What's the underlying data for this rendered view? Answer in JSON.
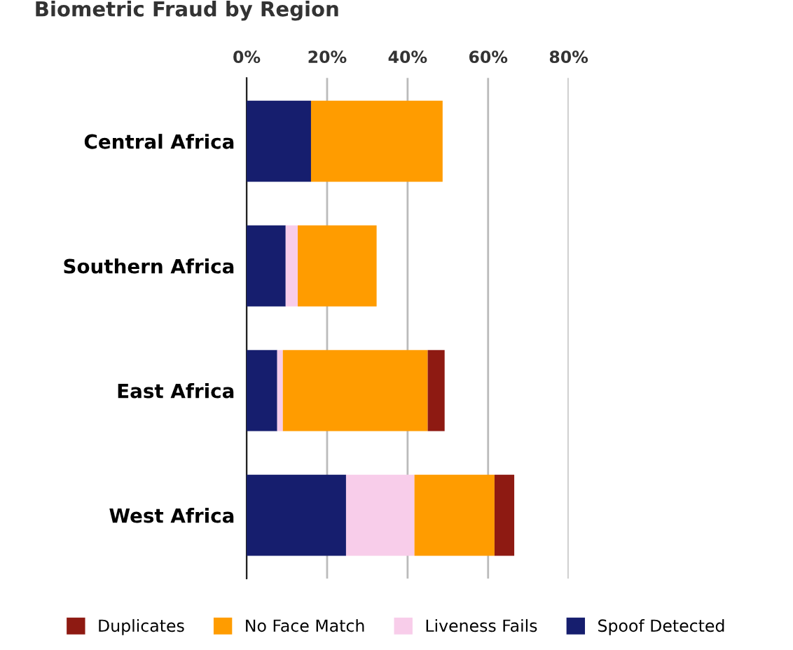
{
  "chart_data": {
    "type": "bar",
    "orientation": "horizontal",
    "stacked": true,
    "title": "Biometric Fraud by Region",
    "categories": [
      "Central Africa",
      "Southern Africa",
      "East Africa",
      "West Africa"
    ],
    "series": [
      {
        "name": "Spoof Detected",
        "color": "#161e6e",
        "values": [
          16,
          9.7,
          7.6,
          24.7
        ]
      },
      {
        "name": "Liveness Fails",
        "color": "#f8cdea",
        "values": [
          null,
          3,
          1.4,
          17
        ]
      },
      {
        "name": "No Face Match",
        "color": "#ff9c00",
        "values": [
          32.7,
          19.6,
          36,
          19.9
        ]
      },
      {
        "name": "Duplicates",
        "color": "#8e1a12",
        "values": [
          null,
          null,
          4.2,
          4.9
        ]
      }
    ],
    "xlim": [
      0,
      80
    ],
    "xticks": [
      {
        "value": 0,
        "label": "0%"
      },
      {
        "value": 20,
        "label": "20%"
      },
      {
        "value": 40,
        "label": "40%"
      },
      {
        "value": 60,
        "label": "60%"
      },
      {
        "value": 80,
        "label": "80%"
      }
    ],
    "grid": "x",
    "legend": "bottom"
  }
}
